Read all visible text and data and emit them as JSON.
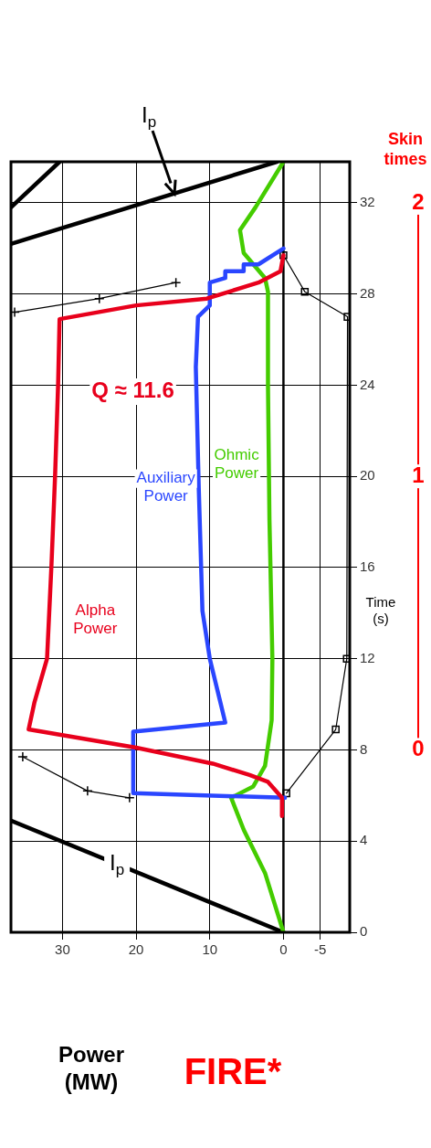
{
  "chart_data": {
    "type": "line",
    "orientation": "horizontal",
    "title": "FIRE*",
    "xlabel": "Power (MW)",
    "ylabel": "Time (s)",
    "y2label": "Skin times",
    "xlim": [
      37,
      -9
    ],
    "xticks": [
      30,
      20,
      10,
      0,
      -5
    ],
    "ylim": [
      0,
      33.8
    ],
    "yticks": [
      0,
      4,
      8,
      12,
      16,
      20,
      24,
      28,
      32
    ],
    "y2lim": [
      -0.667,
      2.15
    ],
    "y2ticks": [
      0,
      1,
      2
    ],
    "grid": true,
    "annotations": [
      "Q ≈ 11.6",
      {
        "text": "I$_{p}$",
        "x": 22.6,
        "y": 3.0
      },
      {
        "text": "I$_{p}$",
        "x": 14.8,
        "y": 32.4
      }
    ],
    "ref_lines": [
      {
        "axis": "x",
        "value": 0,
        "color": "#000000"
      }
    ],
    "series": [
      {
        "name": "Alpha Power",
        "color": "#e8001c",
        "x": [
          5.1,
          5.9,
          6.6,
          6.9,
          7.4,
          8.1,
          8.9,
          10.1,
          12.0,
          16.1,
          20.1,
          24.0,
          26.9,
          27.5,
          27.8,
          28.5,
          29.0,
          29.7
        ],
        "values": [
          0.2,
          0.2,
          2.1,
          4.6,
          9.6,
          20,
          34.6,
          33.8,
          32.1,
          31.5,
          31,
          30.6,
          30.4,
          20,
          10.4,
          3.4,
          0.4,
          0
        ]
      },
      {
        "name": "Auxiliary Power",
        "color": "#2a46ff",
        "x": [
          5.9,
          6.1,
          8.8,
          9.2,
          12.0,
          14.1,
          19.5,
          24.8,
          27.0,
          27.5,
          28.5,
          28.7,
          29.0,
          29.0,
          29.3,
          29.3,
          30.0
        ],
        "values": [
          -0.2,
          20.4,
          20.4,
          7.9,
          10,
          11,
          11.5,
          11.9,
          11.6,
          10,
          10,
          7.9,
          7.9,
          5.4,
          5.4,
          3.4,
          0
        ]
      },
      {
        "name": "Ohmic Power",
        "color": "#44cc00",
        "x": [
          0,
          2.6,
          4.5,
          5.9,
          6.4,
          7.3,
          9.3,
          12,
          18.1,
          24,
          28.1,
          28.7,
          29.8,
          30.8,
          31.8,
          33.8
        ],
        "values": [
          0,
          2.5,
          5.4,
          7.1,
          4.1,
          2.5,
          1.6,
          1.5,
          1.9,
          2.1,
          2.1,
          2.5,
          5.4,
          5.9,
          3.8,
          0
        ]
      },
      {
        "color": "#000000",
        "x": [
          0,
          4.9
        ],
        "values": [
          0,
          37
        ]
      },
      {
        "color": "#000000",
        "x": [
          30.2,
          33.8
        ],
        "values": [
          37,
          0.9
        ]
      },
      {
        "color": "#000000",
        "x": [
          31.8,
          33.8
        ],
        "values": [
          37,
          30.4
        ]
      },
      {
        "color": "#000000",
        "marker": "cross",
        "x": [
          5.9,
          6.2,
          7.7,
          17,
          27.2,
          27.8,
          28.5
        ],
        "values": [
          20.9,
          26.6,
          35.4,
          null,
          36.5,
          25,
          14.6
        ]
      },
      {
        "color": "#000000",
        "marker": "square",
        "x": [
          6.1,
          8.9,
          12,
          27,
          28.1,
          29.7
        ],
        "values": [
          -0.4,
          -7.1,
          -8.6,
          -8.7,
          -2.9,
          0
        ]
      }
    ]
  }
}
